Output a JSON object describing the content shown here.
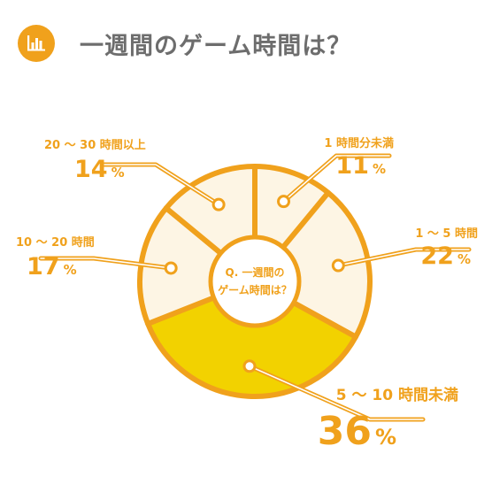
{
  "header": {
    "title": "一週間のゲーム時間は？",
    "icon": "bar-chart-icon",
    "icon_bg": "#f0a11c"
  },
  "colors": {
    "accent": "#f0a11c",
    "label": "#f0a11c",
    "slice_fill": "#fdf5e4",
    "highlight_fill": "#f2d200",
    "center_fill": "#ffffff"
  },
  "chart_data": {
    "type": "pie",
    "center_label": [
      "Q. 一週間の",
      "ゲーム時間は？"
    ],
    "unit": "%",
    "slices": [
      {
        "label": "1 時間分未満",
        "value": 11
      },
      {
        "label": "1 ～ 5 時間",
        "value": 22
      },
      {
        "label": "5 ～ 10 時間未満",
        "value": 36,
        "highlight": true
      },
      {
        "label": "10 ～ 20 時間",
        "value": 17
      },
      {
        "label": "20 ～ 30 時間以上",
        "value": 14
      }
    ]
  }
}
